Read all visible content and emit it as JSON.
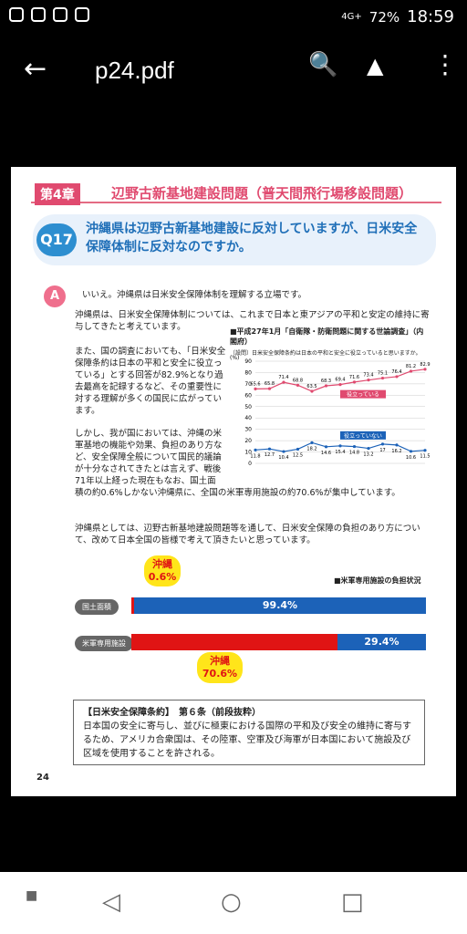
{
  "status": {
    "battery": "72%",
    "time": "18:59",
    "network": "4G+"
  },
  "app": {
    "title": "p24.pdf",
    "icons": {
      "back": "back-arrow-icon",
      "search": "search-icon",
      "drive": "add-to-drive-icon",
      "more": "more-vert-icon"
    }
  },
  "doc": {
    "chapter_badge": "第4章",
    "chapter_title": "辺野古新基地建設問題（普天間飛行場移設問題）",
    "q_badge": "Q17",
    "question": "沖縄県は辺野古新基地建設に反対していますが、日米安全保障体制に反対なのですか。",
    "a_badge": "A",
    "p1": "いいえ。沖縄県は日米安全保障体制を理解する立場です。",
    "p2": "沖縄県は、日米安全保障体制については、これまで日本と東アジアの平和と安定の維持に寄与してきたと考えています。",
    "p3": "また、国の調査においても、「日米安全保障条約は日本の平和と安全に役立っている」とする回答が82.9%となり過去最高を記録するなど、その重要性に対する理解が多くの国民に広がっています。",
    "p4": "しかし、我が国においては、沖縄の米軍基地の機能や効果、負担のあり方など、安全保障全般について国民的議論が十分なされてきたとは言えず、戦後71年以上経った現在もなお、国土面積の約0.6%しかない沖縄県に、全国の米軍専用施設の約70.6%が集中しています。",
    "p5": "沖縄県としては、辺野古新基地建設問題等を通して、日米安全保障の負担のあり方について、改めて日本全国の皆様で考えて頂きたいと思っています。",
    "chart_title": "■平成27年1月「自衛隊・防衛問題に関する世論調査」（内閣府）",
    "chart_question": "〔設問〕日米安全保障条約は日本の平和と安全に役立っていると思いますか。",
    "bars_title": "■米軍専用施設の負担状況",
    "bar1_label": "国土面積",
    "bar1_value": "99.4%",
    "bar2_label": "米軍専用施設",
    "bar2_value": "29.4%",
    "callout1": "沖縄 0.6%",
    "callout2": "沖縄 70.6%",
    "treaty_title": "【日米安全保障条約】　第６条（前段抜粋）",
    "treaty_text": "日本国の安全に寄与し、並びに極東における国際の平和及び安全の維持に寄与するため、アメリカ合衆国は、その陸軍、空軍及び海軍が日本国において施設及び区域を使用することを許される。",
    "page_number": "24"
  },
  "chart_data": {
    "type": "line",
    "y_unit": "(%)",
    "ylim": [
      0,
      90
    ],
    "yticks": [
      0,
      10,
      20,
      30,
      40,
      50,
      60,
      70,
      80,
      90
    ],
    "series": [
      {
        "name": "役立っている",
        "color": "#e04a6f",
        "values": [
          65.6,
          65.8,
          71.4,
          68.8,
          63.5,
          68.3,
          69.4,
          71.6,
          73.4,
          75.1,
          76.4,
          81.2,
          82.9
        ]
      },
      {
        "name": "役立っていない",
        "color": "#1c62b8",
        "values": [
          11.8,
          12.7,
          10.4,
          12.5,
          18.2,
          14.6,
          15.4,
          14.8,
          13.2,
          17.0,
          16.2,
          10.6,
          11.5
        ]
      }
    ]
  },
  "nav": {
    "icons": [
      "back-icon",
      "home-icon",
      "recents-icon"
    ]
  }
}
